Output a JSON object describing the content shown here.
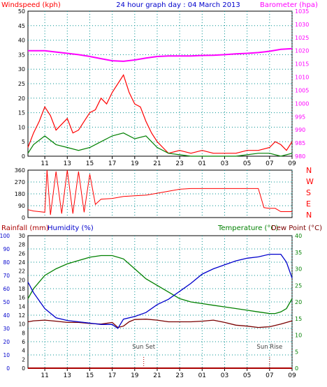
{
  "colors": {
    "wind": "#ff0000",
    "gust": "#008000",
    "barometer": "#ff00ff",
    "direction": "#ff0000",
    "temperature": "#008000",
    "dewpoint": "#7a0000",
    "humidity": "#0000cc",
    "rainfall": "#aa0000",
    "grid": "#009090",
    "axis_blue": "#0000cc",
    "sun_marker": "#aa0000"
  },
  "chart_data": [
    {
      "type": "line",
      "title": "24 hour graph day : 04 March 2013",
      "ylabel_left": "Windspeed (kph)",
      "ylabel_right": "Barometer (hpa)",
      "x_ticks": [
        "11",
        "13",
        "15",
        "17",
        "19",
        "21",
        "23",
        "01",
        "03",
        "05",
        "07",
        "09"
      ],
      "ylim_left": [
        0,
        50
      ],
      "yticks_left": [
        "0",
        "5",
        "10",
        "15",
        "20",
        "25",
        "30",
        "35",
        "40",
        "45",
        "50"
      ],
      "ylim_right": [
        980,
        1035
      ],
      "yticks_right": [
        "980",
        "985",
        "990",
        "995",
        "1000",
        "1005",
        "1010",
        "1015",
        "1020",
        "1025",
        "1030",
        "1035"
      ],
      "grid": true,
      "series": [
        {
          "name": "Barometer",
          "axis": "right",
          "x": [
            9.5,
            10,
            11,
            12,
            13,
            14,
            15,
            16,
            17,
            18,
            19,
            20,
            21,
            22,
            23,
            24,
            25,
            26,
            27,
            28,
            29,
            30,
            31,
            32,
            33
          ],
          "values": [
            1020,
            1020,
            1020,
            1019.5,
            1019,
            1018.5,
            1017.8,
            1017,
            1016.2,
            1016,
            1016.5,
            1017.2,
            1017.8,
            1018,
            1018,
            1018,
            1018.2,
            1018.3,
            1018.5,
            1018.8,
            1019,
            1019.3,
            1019.8,
            1020.5,
            1020.8
          ]
        },
        {
          "name": "Windspeed",
          "axis": "left",
          "x": [
            9.5,
            10,
            10.5,
            11,
            11.5,
            12,
            12.5,
            13,
            13.5,
            14,
            14.5,
            15,
            15.5,
            16,
            16.5,
            17,
            17.5,
            18,
            18.5,
            19,
            19.5,
            20,
            20.5,
            21,
            21.5,
            22,
            23,
            24,
            25,
            26,
            27,
            28,
            29,
            30,
            31,
            31.5,
            32,
            32.5,
            33
          ],
          "values": [
            3,
            8,
            12,
            17,
            14,
            9,
            11,
            13,
            8,
            9,
            12,
            15,
            16,
            20,
            18,
            22,
            25,
            28,
            22,
            18,
            17,
            12,
            8,
            5,
            3,
            1,
            2,
            1,
            2,
            1,
            1,
            1,
            2,
            2,
            3,
            5,
            4,
            2,
            5
          ]
        },
        {
          "name": "Gust",
          "axis": "left",
          "x": [
            9.5,
            10,
            11,
            12,
            13,
            14,
            15,
            16,
            17,
            18,
            19,
            20,
            21,
            22,
            24,
            26,
            28,
            30,
            31,
            32,
            33
          ],
          "values": [
            1,
            4,
            7,
            4,
            3,
            2,
            3,
            5,
            7,
            8,
            6,
            7,
            3,
            1,
            0,
            0,
            0,
            1,
            1,
            0,
            1
          ]
        }
      ]
    },
    {
      "type": "line",
      "ylabel_left": "",
      "ylabel_right": "",
      "direction_labels": [
        "N",
        "W",
        "S",
        "E",
        "N"
      ],
      "ylim": [
        0,
        360
      ],
      "yticks": [
        "0",
        "90",
        "180",
        "270",
        "360"
      ],
      "series": [
        {
          "name": "Wind direction",
          "x": [
            9.5,
            10,
            10.5,
            11,
            11.2,
            11.5,
            12,
            12.5,
            13,
            13.5,
            14,
            14.5,
            15,
            15.5,
            16,
            17,
            18,
            19,
            20,
            21,
            22,
            23,
            24,
            25,
            26,
            27,
            28,
            29,
            30,
            30.5,
            31,
            31.5,
            32,
            33
          ],
          "values": [
            60,
            50,
            45,
            40,
            360,
            20,
            350,
            30,
            360,
            30,
            350,
            40,
            330,
            100,
            140,
            145,
            160,
            165,
            170,
            185,
            200,
            215,
            220,
            220,
            220,
            220,
            220,
            220,
            220,
            75,
            70,
            70,
            45,
            45
          ]
        }
      ]
    },
    {
      "type": "line",
      "labels": {
        "rainfall": "Rainfall (mm)",
        "humidity": "Humidity (%)",
        "temperature": "Temperature (°C)",
        "dewpoint": "Dew Point (°C)",
        "sunset": "Sun Set",
        "sunrise": "Sun Rise"
      },
      "x_ticks": [
        "11",
        "13",
        "15",
        "17",
        "19",
        "21",
        "23",
        "01",
        "03",
        "05",
        "07",
        "09"
      ],
      "ylim_humidity": [
        0,
        100
      ],
      "yticks_humidity": [
        "0",
        "10",
        "20",
        "30",
        "40",
        "50",
        "60",
        "70",
        "80",
        "90",
        "100"
      ],
      "ylim_rain": [
        0,
        30
      ],
      "yticks_rain": [
        "0",
        "2",
        "4",
        "6",
        "8",
        "10",
        "12",
        "14",
        "16",
        "18",
        "20",
        "22",
        "24",
        "26",
        "28",
        "30"
      ],
      "ylim_temp": [
        0,
        40
      ],
      "yticks_temp": [
        "0",
        "5",
        "10",
        "15",
        "20",
        "25",
        "30",
        "35",
        "40"
      ],
      "grid": true,
      "series": [
        {
          "name": "Temperature",
          "axis": "temp",
          "x": [
            9.5,
            10,
            11,
            12,
            13,
            14,
            15,
            16,
            17,
            18,
            19,
            20,
            21,
            22,
            23,
            24,
            25,
            26,
            27,
            28,
            29,
            30,
            31,
            31.5,
            32,
            32.5,
            33
          ],
          "values": [
            21,
            24,
            28,
            30,
            31.5,
            32.5,
            33.5,
            34,
            34,
            33,
            30,
            27,
            25,
            23,
            21,
            20,
            19.5,
            19,
            18.5,
            18,
            17.5,
            17,
            16.5,
            16.5,
            17,
            18,
            21
          ]
        },
        {
          "name": "Dew Point",
          "axis": "temp",
          "x": [
            9.5,
            10,
            11,
            12,
            13,
            14,
            15,
            16,
            17,
            17.5,
            18,
            18.5,
            19,
            20,
            21,
            22,
            23,
            24,
            25,
            26,
            27,
            28,
            29,
            30,
            31,
            32,
            33
          ],
          "values": [
            14,
            14.3,
            14.5,
            14.2,
            13.8,
            13.8,
            13.5,
            13.3,
            13.8,
            12.3,
            12.7,
            14,
            14.7,
            14.8,
            14.5,
            14,
            14,
            14,
            14.2,
            14.5,
            13.8,
            13,
            12.7,
            12.3,
            12.5,
            13.3,
            14.3
          ]
        },
        {
          "name": "Humidity",
          "axis": "humidity",
          "x": [
            9.5,
            10,
            11,
            12,
            13,
            14,
            15,
            16,
            17,
            17.5,
            18,
            19,
            20,
            21,
            22,
            23,
            24,
            25,
            26,
            27,
            28,
            29,
            30,
            31,
            31.5,
            32,
            32.5,
            33
          ],
          "values": [
            65,
            57,
            45,
            38,
            36,
            35,
            34,
            33,
            33,
            30,
            37,
            39,
            42,
            48,
            52,
            58,
            64,
            71,
            75,
            78,
            81,
            83,
            84,
            86,
            86,
            86,
            80,
            68
          ]
        },
        {
          "name": "Rainfall",
          "axis": "rain",
          "x": [
            9.5,
            33
          ],
          "values": [
            0,
            0
          ]
        }
      ],
      "sunset_hour": 19.8,
      "sunrise_hour": 31.0
    }
  ]
}
